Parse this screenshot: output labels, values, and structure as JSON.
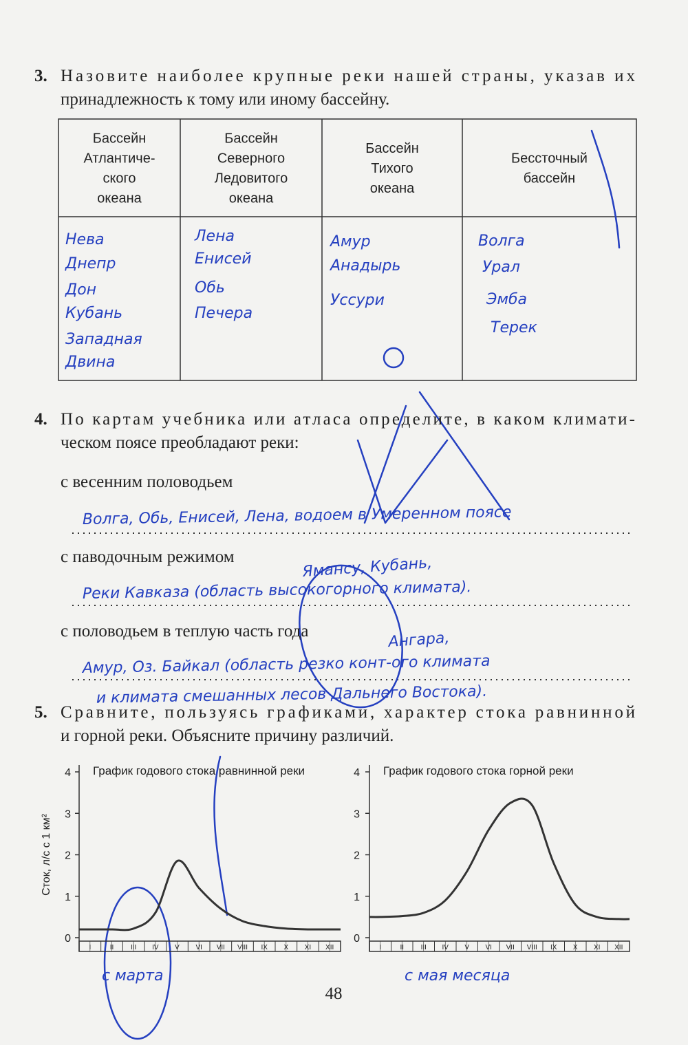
{
  "task3": {
    "number": "3.",
    "text_lines": [
      "Назовите наиболее крупные реки нашей страны, указав их",
      "принадлежность к тому или иному бассейну."
    ],
    "table": {
      "header": [
        [
          "Бассейн",
          "Атлантиче-",
          "ского",
          "океана"
        ],
        [
          "Бассейн",
          "Северного",
          "Ледовитого",
          "океана"
        ],
        [
          "Бассейн",
          "Тихого",
          "океана"
        ],
        [
          "Бессточный",
          "бассейн"
        ]
      ],
      "cells": [
        [
          "Нева",
          "Днепр",
          "Дон",
          "Кубань",
          "Западная",
          "Двина"
        ],
        [
          "Лена",
          "Енисей",
          "Обь",
          "Печера"
        ],
        [
          "Амур",
          "Анадырь",
          "Уссури"
        ],
        [
          "Волга",
          "Урал",
          "Эмба",
          "Терек"
        ]
      ]
    }
  },
  "task4": {
    "number": "4.",
    "text_lines": [
      "По картам учебника или атласа определите, в каком климати-",
      "ческом поясе преобладают реки:"
    ],
    "items": [
      {
        "label": "с весенним половодьем",
        "answer": [
          "Волга, Обь, Енисей, Лена, водоем в Умеренном поясе"
        ]
      },
      {
        "label": "с паводочным режимом",
        "answer": [
          "Реки Кавказа (область высокогорного климата)."
        ]
      },
      {
        "label": "с половодьем в теплую часть года",
        "answer": [
          "Амур, Оз. Байкал (область резко конт-ого климата",
          "и климата смешанных лесов Дальнего Востока)."
        ]
      }
    ],
    "annotations": [
      "Ямансу, Кубань,",
      "Ангара,"
    ]
  },
  "task5": {
    "number": "5.",
    "text_lines": [
      "Сравните, пользуясь графиками, характер стока равнинной",
      "и горной реки. Объясните причину различий."
    ],
    "notes": [
      "с марта",
      "с мая месяца"
    ]
  },
  "chart_data": [
    {
      "type": "line",
      "title": "График годового стока равнинной реки",
      "y_label": "Сток, л/с с 1 км²",
      "categories": [
        "I",
        "II",
        "III",
        "IV",
        "V",
        "VI",
        "VII",
        "VIII",
        "IX",
        "X",
        "XI",
        "XII"
      ],
      "values": [
        0.2,
        0.2,
        0.22,
        0.6,
        1.85,
        1.2,
        0.7,
        0.4,
        0.28,
        0.22,
        0.2,
        0.2
      ],
      "color": "#333333",
      "ylim": [
        0,
        4
      ],
      "yticks": [
        0,
        1,
        2,
        3,
        4
      ]
    },
    {
      "type": "line",
      "title": "График годового стока горной реки",
      "categories": [
        "I",
        "II",
        "III",
        "IV",
        "V",
        "VI",
        "VII",
        "VIII",
        "IX",
        "X",
        "XI",
        "XII"
      ],
      "values": [
        0.5,
        0.52,
        0.6,
        0.9,
        1.6,
        2.6,
        3.25,
        3.2,
        1.8,
        0.8,
        0.5,
        0.45
      ],
      "color": "#333333",
      "ylim": [
        0,
        4
      ],
      "yticks": [
        0,
        1,
        2,
        3,
        4
      ]
    }
  ],
  "page_number": "48"
}
